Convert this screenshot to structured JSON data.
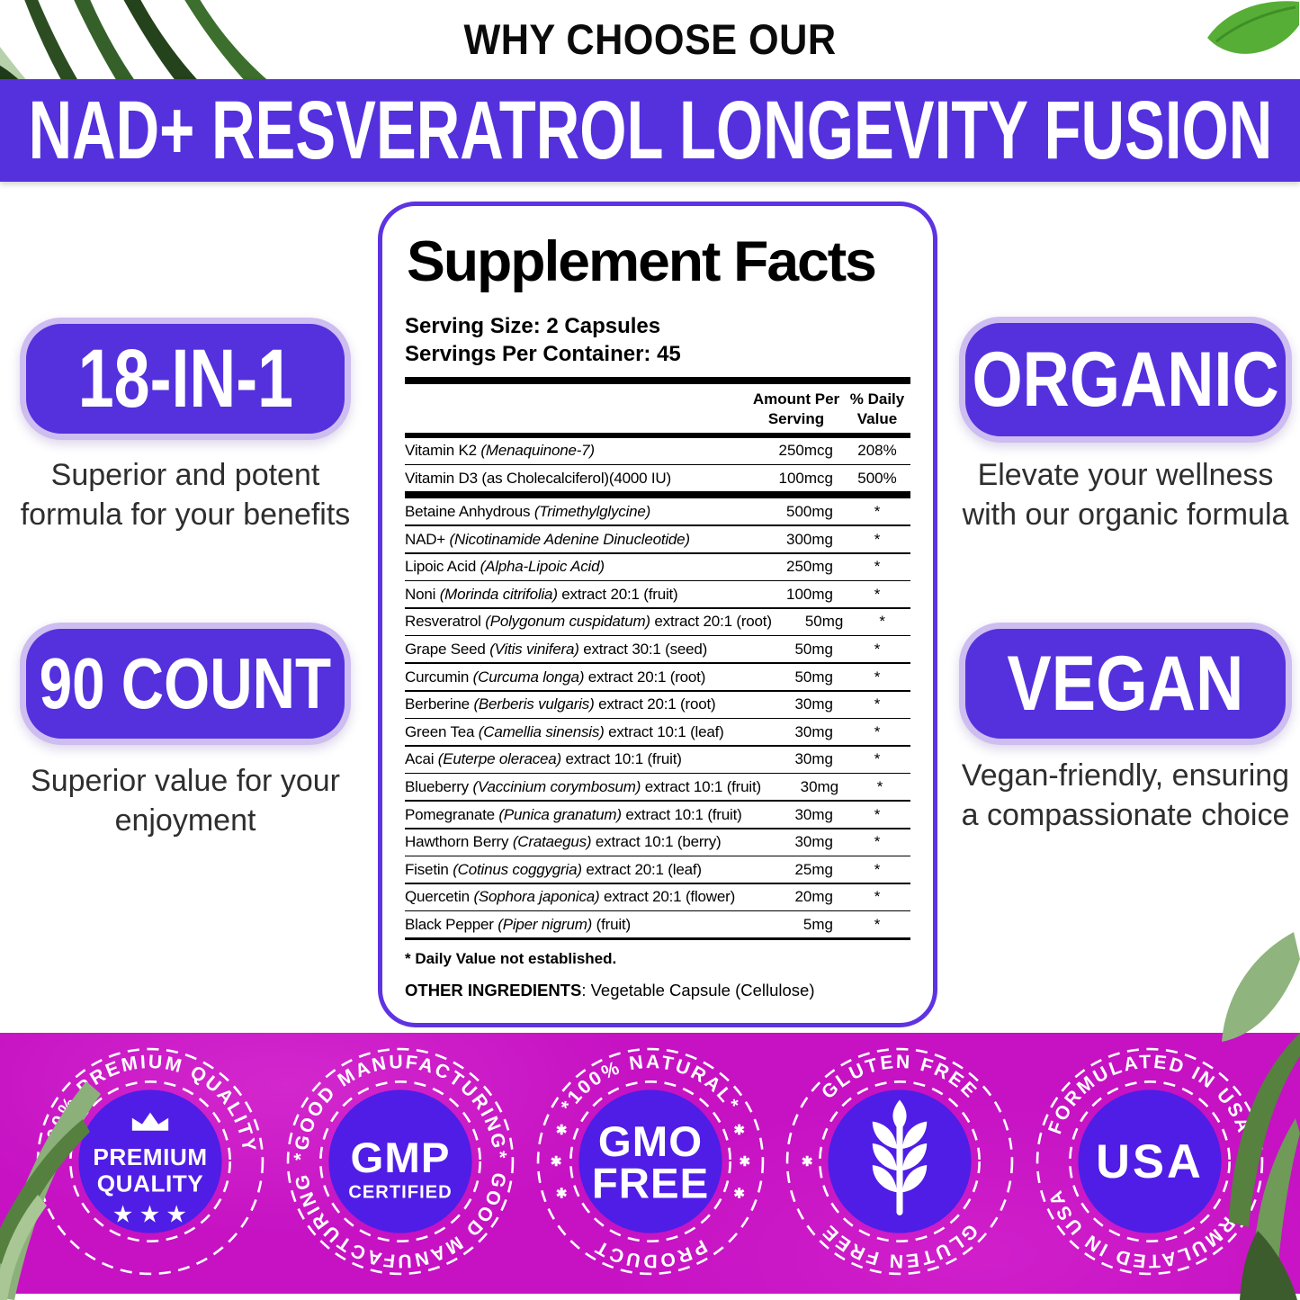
{
  "colors": {
    "purple": "#5431dd",
    "purple_deep": "#4f1de6",
    "lavender_border": "#cebdf0",
    "magenta": "#c612c3",
    "text_dark": "#2e2e2e"
  },
  "header": {
    "eyebrow": "WHY CHOOSE OUR",
    "title": "NAD+ RESVERATROL LONGEVITY FUSION"
  },
  "features_left": [
    {
      "badge": "18-IN-1",
      "description": "Superior and potent formula for your benefits"
    },
    {
      "badge": "90 COUNT",
      "description": "Superior value for your enjoyment"
    }
  ],
  "features_right": [
    {
      "badge": "ORGANIC",
      "description": "Elevate your wellness with our organic formula"
    },
    {
      "badge": "VEGAN",
      "description": "Vegan-friendly, ensuring a compassionate choice"
    }
  ],
  "supplement_facts": {
    "title": "Supplement Facts",
    "serving_size": "Serving Size: 2 Capsules",
    "servings_per_container": "Servings Per Container: 45",
    "columns": {
      "amount_line1": "Amount Per",
      "amount_line2": "Serving",
      "dv_line1": "% Daily",
      "dv_line2": "Value"
    },
    "rows": [
      {
        "text": "Vitamin K2 ",
        "italic": "(Menaquinone-7)",
        "suffix": "",
        "amount": "250mcg",
        "dv": "208%",
        "sep": "thin"
      },
      {
        "text": "Vitamin D3 (as Cholecalciferol)(4000 IU)",
        "italic": "",
        "suffix": "",
        "amount": "100mcg",
        "dv": "500%",
        "sep": "thick"
      },
      {
        "text": "Betaine Anhydrous ",
        "italic": "(Trimethylglycine)",
        "suffix": "",
        "amount": "500mg",
        "dv": "*",
        "sep": "thin"
      },
      {
        "text": "NAD+ ",
        "italic": "(Nicotinamide Adenine Dinucleotide)",
        "suffix": "",
        "amount": "300mg",
        "dv": "*",
        "sep": "thin"
      },
      {
        "text": "Lipoic Acid ",
        "italic": "(Alpha-Lipoic Acid)",
        "suffix": "",
        "amount": "250mg",
        "dv": "*",
        "sep": "thin"
      },
      {
        "text": "Noni ",
        "italic": "(Morinda citrifolia)",
        "suffix": " extract 20:1 (fruit)",
        "amount": "100mg",
        "dv": "*",
        "sep": "thin"
      },
      {
        "text": "Resveratrol ",
        "italic": "(Polygonum cuspidatum)",
        "suffix": " extract 20:1 (root)",
        "amount": "50mg",
        "dv": "*",
        "sep": "thin"
      },
      {
        "text": "Grape Seed ",
        "italic": "(Vitis vinifera)",
        "suffix": " extract 30:1 (seed)",
        "amount": "50mg",
        "dv": "*",
        "sep": "thin"
      },
      {
        "text": "Curcumin ",
        "italic": "(Curcuma longa)",
        "suffix": " extract 20:1 (root)",
        "amount": "50mg",
        "dv": "*",
        "sep": "thin"
      },
      {
        "text": "Berberine ",
        "italic": "(Berberis vulgaris)",
        "suffix": " extract 20:1 (root)",
        "amount": "30mg",
        "dv": "*",
        "sep": "thin"
      },
      {
        "text": "Green Tea ",
        "italic": "(Camellia sinensis)",
        "suffix": " extract 10:1 (leaf)",
        "amount": "30mg",
        "dv": "*",
        "sep": "thin"
      },
      {
        "text": "Acai ",
        "italic": "(Euterpe oleracea)",
        "suffix": " extract 10:1 (fruit)",
        "amount": "30mg",
        "dv": "*",
        "sep": "thin"
      },
      {
        "text": "Blueberry ",
        "italic": "(Vaccinium corymbosum)",
        "suffix": " extract 10:1 (fruit)",
        "amount": "30mg",
        "dv": "*",
        "sep": "thin"
      },
      {
        "text": "Pomegranate ",
        "italic": "(Punica granatum)",
        "suffix": " extract 10:1 (fruit)",
        "amount": "30mg",
        "dv": "*",
        "sep": "thin"
      },
      {
        "text": "Hawthorn Berry ",
        "italic": "(Crataegus)",
        "suffix": " extract 10:1 (berry)",
        "amount": "30mg",
        "dv": "*",
        "sep": "thin"
      },
      {
        "text": "Fisetin ",
        "italic": "(Cotinus coggygria)",
        "suffix": " extract 20:1 (leaf)",
        "amount": "25mg",
        "dv": "*",
        "sep": "thin"
      },
      {
        "text": "Quercetin ",
        "italic": "(Sophora japonica)",
        "suffix": " extract 20:1 (flower)",
        "amount": "20mg",
        "dv": "*",
        "sep": "thin"
      },
      {
        "text": "Black Pepper ",
        "italic": "(Piper nigrum)",
        "suffix": " (fruit)",
        "amount": "5mg",
        "dv": "*",
        "sep": "end"
      }
    ],
    "footnote": "* Daily Value not established.",
    "other_ingredients_label": "OTHER INGREDIENTS",
    "other_ingredients_value": ": Vegetable Capsule (Cellulose)"
  },
  "seals": [
    {
      "arc_top": "100% PREMIUM QUALITY",
      "arc_bottom": "",
      "line1": "PREMIUM",
      "line2": "QUALITY",
      "stars": "★★★",
      "icon": "crown"
    },
    {
      "arc_top": "*GOOD MANUFACTURING*",
      "arc_bottom": "GOOD MANUFACTURING",
      "line1": "GMP",
      "line2": "CERTIFIED"
    },
    {
      "arc_top": "*100% NATURAL*",
      "arc_bottom": "PRODUCT",
      "line1": "GMO",
      "line2": "FREE",
      "side_mark": "✱"
    },
    {
      "arc_top": "GLUTEN FREE",
      "arc_bottom": "GLUTEN FREE",
      "icon": "wheat",
      "side_mark": "✱"
    },
    {
      "arc_top": "FORMULATED IN USA",
      "arc_bottom": "FORMULATED IN USA",
      "line1": "USA"
    }
  ]
}
